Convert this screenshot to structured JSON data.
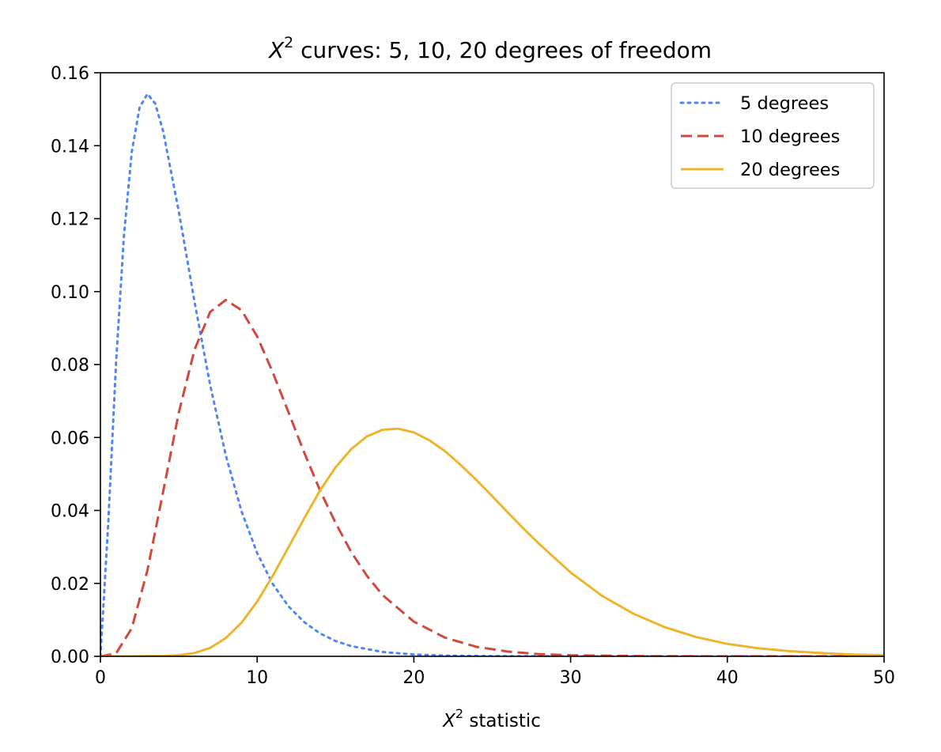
{
  "chart_data": {
    "type": "line",
    "title": {
      "symbol": "X",
      "superscript": "2",
      "text": " curves: 5, 10, 20 degrees of freedom"
    },
    "xlabel": {
      "symbol": "X",
      "superscript": "2",
      "text": " statistic"
    },
    "ylabel": "",
    "xlim": [
      0,
      50
    ],
    "ylim": [
      0,
      0.16
    ],
    "xticks": [
      0,
      10,
      20,
      30,
      40,
      50
    ],
    "xtick_labels": [
      "0",
      "10",
      "20",
      "30",
      "40",
      "50"
    ],
    "yticks": [
      0,
      0.02,
      0.04,
      0.06,
      0.08,
      0.1,
      0.12,
      0.14,
      0.16
    ],
    "ytick_labels": [
      "0.00",
      "0.02",
      "0.04",
      "0.06",
      "0.08",
      "0.10",
      "0.12",
      "0.14",
      "0.16"
    ],
    "grid": false,
    "legend_position": "top-right",
    "series": [
      {
        "name": "5 degrees",
        "color": "#4f86f7",
        "linestyle": "dotted",
        "x": [
          0,
          0.5,
          1,
          1.5,
          2,
          2.5,
          3,
          3.5,
          4,
          5,
          6,
          7,
          8,
          9,
          10,
          11,
          12,
          13,
          14,
          15,
          16,
          18,
          20,
          22,
          25,
          30,
          35,
          40,
          45,
          50
        ],
        "y": [
          0,
          0.0366,
          0.0807,
          0.1153,
          0.1383,
          0.1505,
          0.1542,
          0.1515,
          0.144,
          0.122,
          0.0973,
          0.0744,
          0.0551,
          0.0398,
          0.0283,
          0.0198,
          0.0137,
          0.0094,
          0.0063,
          0.0042,
          0.0028,
          0.0012,
          0.0005,
          0.0002,
          5e-05,
          0.0,
          0.0,
          0.0,
          0.0,
          0.0
        ]
      },
      {
        "name": "10 degrees",
        "color": "#cf4a3a",
        "linestyle": "dashed",
        "x": [
          0,
          1,
          2,
          3,
          4,
          5,
          6,
          7,
          8,
          9,
          10,
          11,
          12,
          13,
          14,
          15,
          16,
          17,
          18,
          20,
          22,
          24,
          26,
          28,
          30,
          35,
          40,
          45,
          50
        ],
        "y": [
          0,
          0.0008,
          0.0077,
          0.0236,
          0.0451,
          0.0668,
          0.084,
          0.0944,
          0.0977,
          0.0949,
          0.0877,
          0.0778,
          0.0669,
          0.0559,
          0.0456,
          0.0366,
          0.0286,
          0.0221,
          0.0168,
          0.0095,
          0.0051,
          0.0026,
          0.0013,
          0.0006,
          0.0003,
          4e-05,
          0.0,
          0.0,
          0.0
        ]
      },
      {
        "name": "20 degrees",
        "color": "#ecb52e",
        "linestyle": "solid",
        "x": [
          0,
          2,
          4,
          5,
          6,
          7,
          8,
          9,
          10,
          11,
          12,
          13,
          14,
          15,
          16,
          17,
          18,
          19,
          20,
          21,
          22,
          23,
          24,
          25,
          26,
          27,
          28,
          30,
          32,
          34,
          36,
          38,
          40,
          42,
          44,
          46,
          48,
          50
        ],
        "y": [
          0,
          0.0,
          0.0001,
          0.0003,
          0.0009,
          0.0023,
          0.005,
          0.0092,
          0.015,
          0.0221,
          0.0299,
          0.0378,
          0.0454,
          0.0518,
          0.0568,
          0.0603,
          0.0621,
          0.0624,
          0.0614,
          0.0592,
          0.0562,
          0.0524,
          0.0483,
          0.0439,
          0.0394,
          0.035,
          0.0308,
          0.023,
          0.0166,
          0.0117,
          0.008,
          0.0053,
          0.0034,
          0.0022,
          0.0014,
          0.0009,
          0.0005,
          0.0003
        ]
      }
    ]
  }
}
